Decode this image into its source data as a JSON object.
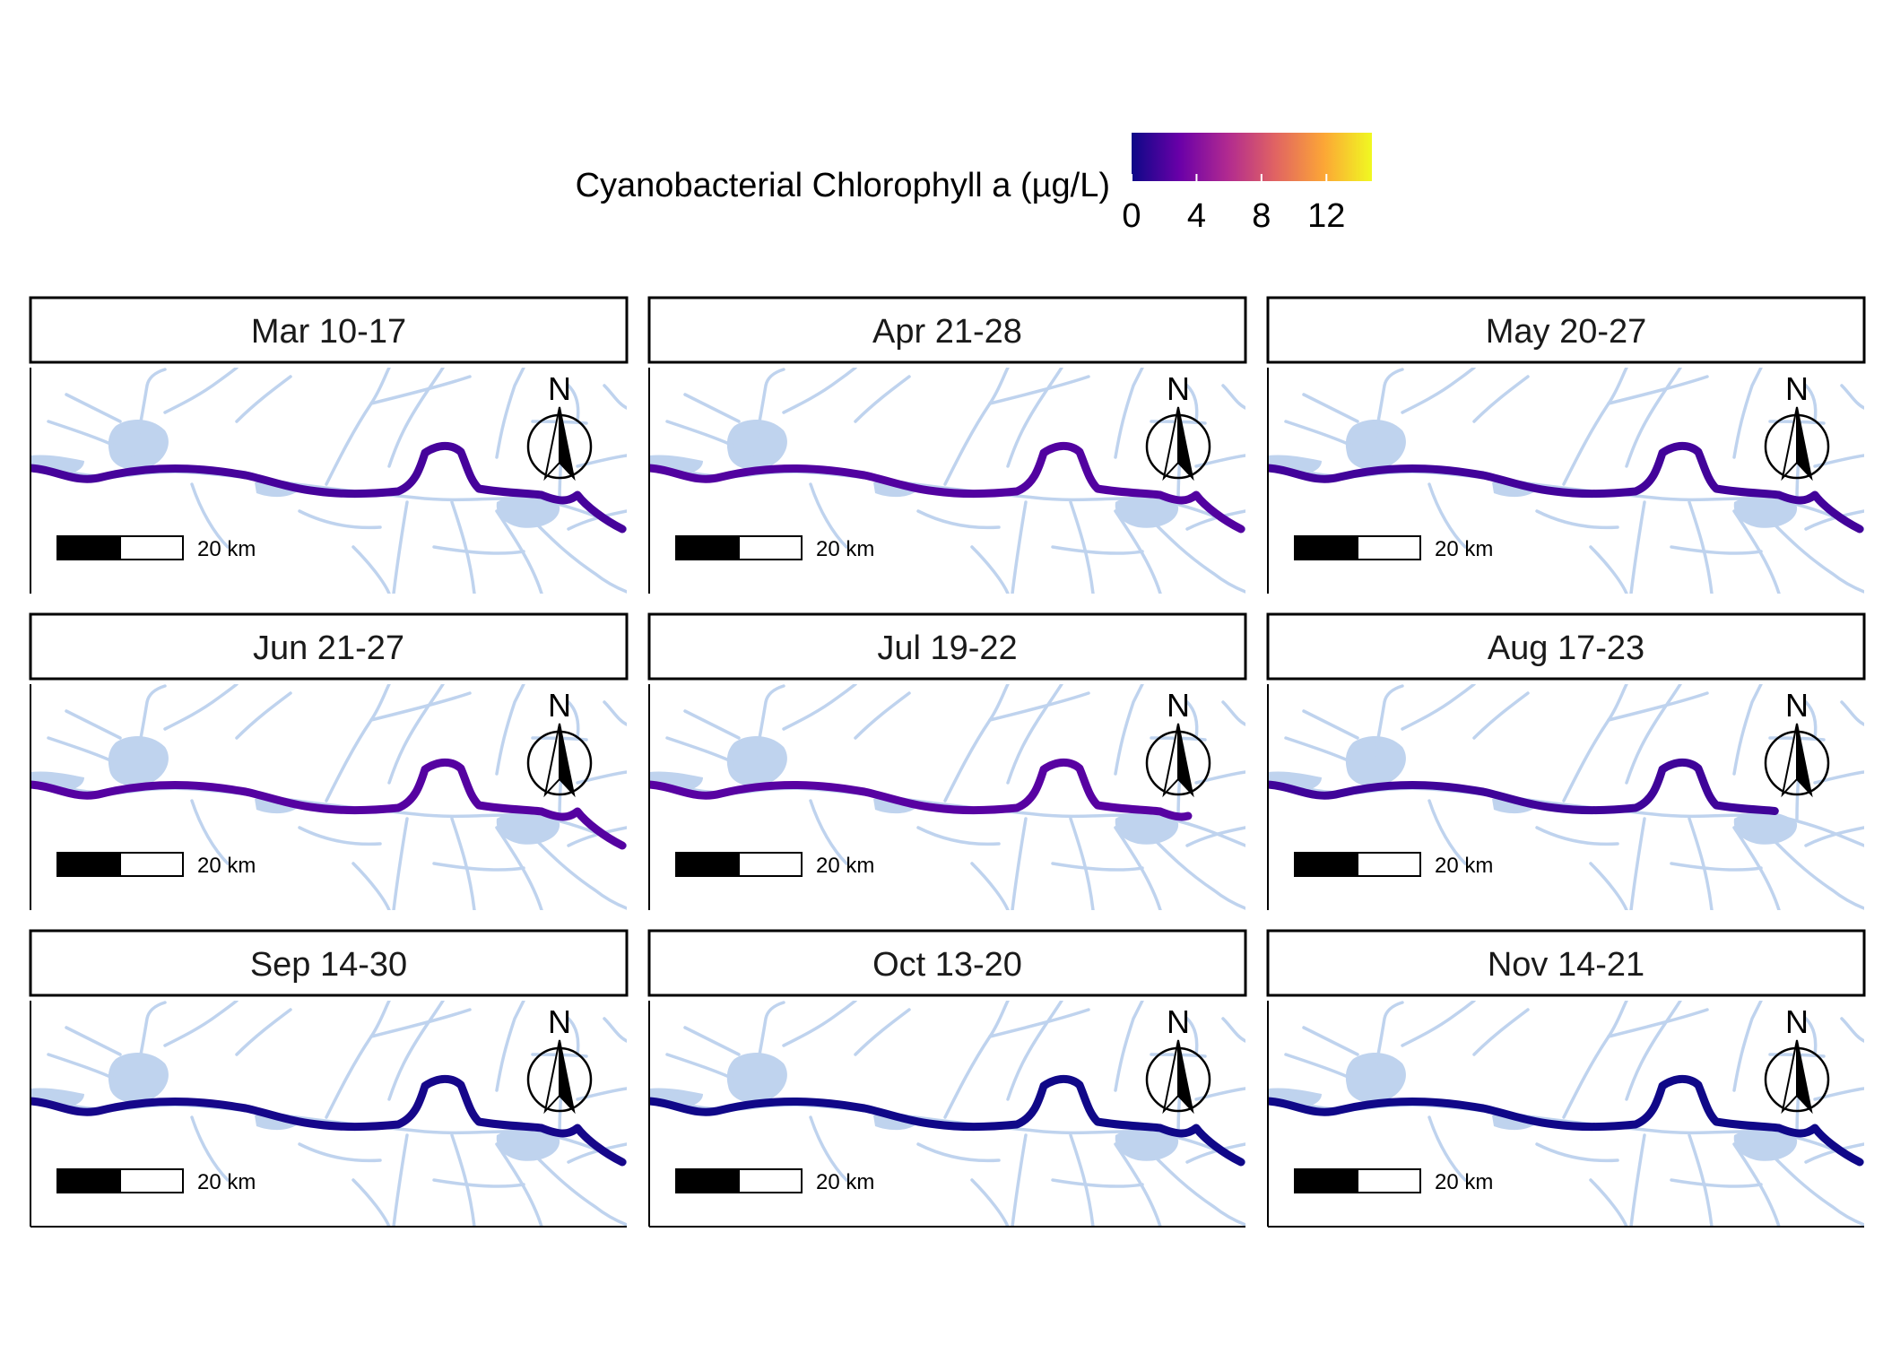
{
  "legend": {
    "title": "Cyanobacterial Chlorophyll a (µg/L)",
    "ticks": [
      0,
      4,
      8,
      12
    ],
    "min": 0,
    "max": 14.8,
    "palette": [
      "#0d0887",
      "#6a00a8",
      "#b12a90",
      "#e16462",
      "#fca636",
      "#f0f921"
    ]
  },
  "map_colors": {
    "water": "#bfd3ee",
    "land": "#ffffff"
  },
  "scale_bar_label": "20 km",
  "north_label": "N",
  "panels": [
    {
      "title": "Mar 10-17",
      "level": 1.8
    },
    {
      "title": "Apr 21-28",
      "level": 2.2
    },
    {
      "title": "May 20-27",
      "level": 1.7
    },
    {
      "title": "Jun 21-27",
      "level": 2.3
    },
    {
      "title": "Jul 19-22",
      "level": 2.4
    },
    {
      "title": "Aug 17-23",
      "level": 1.6
    },
    {
      "title": "Sep 14-30",
      "level": 0.3
    },
    {
      "title": "Oct 13-20",
      "level": 0.1
    },
    {
      "title": "Nov 14-21",
      "level": 0.1
    }
  ]
}
